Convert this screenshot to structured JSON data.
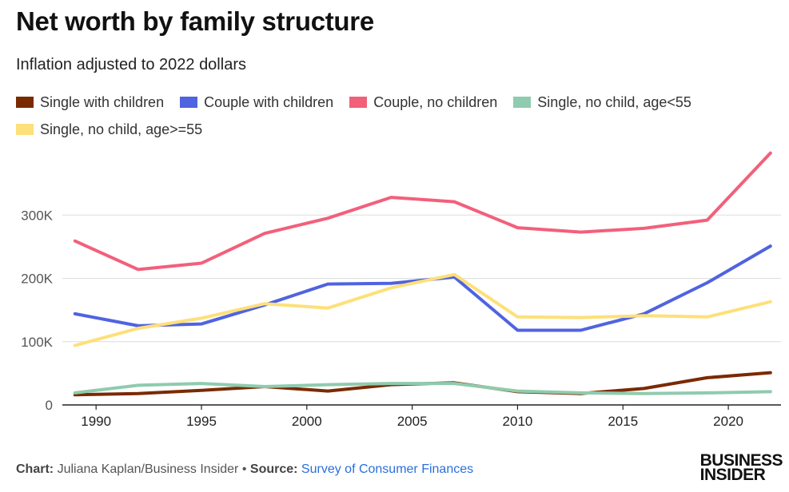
{
  "title": "Net worth by family structure",
  "subtitle": "Inflation adjusted to 2022 dollars",
  "footer": {
    "chart_label": "Chart:",
    "chart_author": "Juliana Kaplan/Business Insider",
    "bullet": "•",
    "source_label": "Source:",
    "source_name": "Survey of Consumer Finances"
  },
  "logo": {
    "line1": "BUSINESS",
    "line2": "INSIDER"
  },
  "colors": {
    "single_with_children": "#7a2a00",
    "couple_with_children": "#5063e0",
    "couple_no_children": "#f2607a",
    "single_no_child_under55": "#8fcbae",
    "single_no_child_55plus": "#fde07a",
    "grid": "#dddddd",
    "axis": "#222222",
    "tick_label": "#555555"
  },
  "chart_data": {
    "type": "line",
    "x": [
      1989,
      1992,
      1995,
      1998,
      2001,
      2004,
      2007,
      2010,
      2013,
      2016,
      2019,
      2022
    ],
    "xticks": [
      1990,
      1995,
      2000,
      2005,
      2010,
      2015,
      2020
    ],
    "xtick_labels": [
      "1990",
      "1995",
      "2000",
      "2005",
      "2010",
      "2015",
      "2020"
    ],
    "yticks": [
      0,
      100000,
      200000,
      300000
    ],
    "ytick_labels": [
      "0",
      "100K",
      "200K",
      "300K"
    ],
    "xlim": [
      1988.4,
      2022.5
    ],
    "ylim": [
      0,
      400000
    ],
    "grid": true,
    "legend_position": "top",
    "series": [
      {
        "name": "Single with children",
        "color_key": "single_with_children",
        "values": [
          16000,
          18000,
          23000,
          29000,
          22000,
          32000,
          35000,
          21000,
          18000,
          26000,
          43000,
          51000
        ]
      },
      {
        "name": "Couple with children",
        "color_key": "couple_with_children",
        "values": [
          144000,
          125000,
          128000,
          158000,
          191000,
          192000,
          202000,
          118000,
          118000,
          144000,
          193000,
          251000
        ]
      },
      {
        "name": "Couple, no children",
        "color_key": "couple_no_children",
        "values": [
          259000,
          214000,
          224000,
          271000,
          295000,
          328000,
          321000,
          280000,
          273000,
          279000,
          292000,
          398000
        ]
      },
      {
        "name": "Single, no child, age<55",
        "color_key": "single_no_child_under55",
        "values": [
          19000,
          31000,
          34000,
          29000,
          32000,
          34000,
          34000,
          22000,
          19000,
          18000,
          19000,
          21000
        ]
      },
      {
        "name": "Single, no child, age>=55",
        "color_key": "single_no_child_55plus",
        "values": [
          94000,
          121000,
          137000,
          160000,
          153000,
          185000,
          206000,
          139000,
          138000,
          141000,
          139000,
          163000
        ]
      }
    ]
  }
}
